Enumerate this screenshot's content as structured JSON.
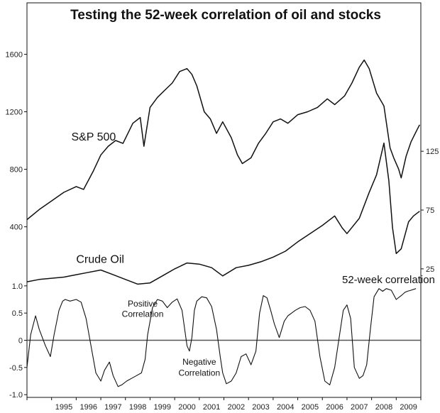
{
  "chart_data": {
    "type": "line",
    "title": "Testing the 52-week correlation of oil and stocks",
    "x_tick_labels": [
      "1995",
      "1996",
      "1997",
      "1998",
      "1999",
      "2000",
      "2001",
      "2002",
      "2003",
      "2004",
      "2005",
      "2006",
      "2007",
      "2008",
      "2009"
    ],
    "x_range": [
      1994.0,
      2010.0
    ],
    "grid": false,
    "legend": "none",
    "panels": [
      {
        "name": "S&P 500",
        "axis_side": "left",
        "y_ticks": [
          400,
          800,
          1200,
          1600
        ],
        "y_tick_labels": [
          "400",
          "800",
          "1200",
          "1600"
        ],
        "ylim": [
          250,
          1780
        ],
        "x": [
          1994.0,
          1994.5,
          1995.0,
          1995.5,
          1996.0,
          1996.3,
          1996.7,
          1997.0,
          1997.3,
          1997.6,
          1997.9,
          1998.3,
          1998.6,
          1998.75,
          1999.0,
          1999.3,
          1999.6,
          1999.9,
          2000.2,
          2000.5,
          2000.7,
          2000.9,
          2001.2,
          2001.45,
          2001.7,
          2001.95,
          2002.3,
          2002.55,
          2002.75,
          2003.1,
          2003.4,
          2003.7,
          2004.0,
          2004.3,
          2004.6,
          2005.0,
          2005.4,
          2005.8,
          2006.2,
          2006.5,
          2006.9,
          2007.2,
          2007.5,
          2007.7,
          2007.9,
          2008.2,
          2008.5,
          2008.75,
          2008.9,
          2009.1,
          2009.2,
          2009.4,
          2009.6,
          2009.8,
          2009.95
        ],
        "y": [
          450,
          520,
          580,
          640,
          680,
          660,
          790,
          900,
          960,
          1000,
          980,
          1120,
          1160,
          960,
          1230,
          1300,
          1350,
          1400,
          1480,
          1500,
          1460,
          1380,
          1200,
          1150,
          1050,
          1130,
          1020,
          900,
          840,
          880,
          980,
          1050,
          1130,
          1150,
          1120,
          1180,
          1200,
          1230,
          1290,
          1250,
          1310,
          1400,
          1510,
          1560,
          1500,
          1330,
          1240,
          950,
          880,
          800,
          740,
          890,
          990,
          1060,
          1110
        ]
      },
      {
        "name": "Crude Oil",
        "axis_side": "right",
        "y_ticks": [
          25,
          75,
          125
        ],
        "y_tick_labels": [
          "25",
          "75",
          "125"
        ],
        "ylim": [
          5,
          142
        ],
        "x": [
          1994.0,
          1994.5,
          1995.0,
          1995.5,
          1996.0,
          1996.5,
          1997.0,
          1997.5,
          1998.0,
          1998.5,
          1999.0,
          1999.5,
          2000.0,
          2000.5,
          2001.0,
          2001.5,
          2001.95,
          2002.5,
          2003.0,
          2003.5,
          2004.0,
          2004.5,
          2005.0,
          2005.5,
          2006.0,
          2006.5,
          2006.8,
          2007.0,
          2007.5,
          2007.9,
          2008.2,
          2008.5,
          2008.7,
          2008.85,
          2009.0,
          2009.2,
          2009.5,
          2009.7,
          2009.95
        ],
        "y": [
          14,
          16,
          17,
          18,
          20,
          22,
          24,
          20,
          16,
          12,
          13,
          19,
          25,
          30,
          29,
          26,
          19,
          26,
          28,
          31,
          35,
          40,
          48,
          55,
          62,
          70,
          60,
          55,
          68,
          90,
          105,
          132,
          100,
          60,
          38,
          42,
          65,
          70,
          74
        ]
      },
      {
        "name": "52-week correlation",
        "axis_side": "left",
        "y_ticks": [
          -1.0,
          -0.5,
          0,
          0.5,
          1.0
        ],
        "y_tick_labels": [
          "-1.0",
          "-0.5",
          "0",
          "0.5",
          "1.0"
        ],
        "ylim": [
          -1.05,
          1.05
        ],
        "zero_line": true,
        "x": [
          1994.0,
          1994.15,
          1994.35,
          1994.5,
          1994.75,
          1994.95,
          1995.1,
          1995.3,
          1995.45,
          1995.55,
          1995.75,
          1996.0,
          1996.2,
          1996.4,
          1996.6,
          1996.8,
          1997.0,
          1997.15,
          1997.35,
          1997.5,
          1997.7,
          1997.85,
          1998.05,
          1998.25,
          1998.45,
          1998.65,
          1998.8,
          1998.9,
          1999.1,
          1999.3,
          1999.5,
          1999.7,
          1999.9,
          2000.1,
          2000.3,
          2000.5,
          2000.6,
          2000.7,
          2000.8,
          2000.9,
          2001.1,
          2001.3,
          2001.5,
          2001.7,
          2001.85,
          2001.95,
          2002.1,
          2002.3,
          2002.5,
          2002.7,
          2002.9,
          2003.1,
          2003.3,
          2003.45,
          2003.6,
          2003.75,
          2003.9,
          2004.05,
          2004.25,
          2004.45,
          2004.6,
          2004.75,
          2004.9,
          2005.1,
          2005.3,
          2005.5,
          2005.7,
          2005.9,
          2006.1,
          2006.3,
          2006.5,
          2006.7,
          2006.85,
          2007.0,
          2007.15,
          2007.3,
          2007.5,
          2007.65,
          2007.8,
          2007.95,
          2008.1,
          2008.3,
          2008.45,
          2008.6,
          2008.8,
          2009.0,
          2009.2,
          2009.35,
          2009.45,
          2009.6,
          2009.8
        ],
        "y": [
          -0.5,
          0.1,
          0.45,
          0.2,
          -0.1,
          -0.3,
          0.1,
          0.55,
          0.72,
          0.75,
          0.72,
          0.75,
          0.7,
          0.4,
          -0.1,
          -0.6,
          -0.75,
          -0.55,
          -0.4,
          -0.65,
          -0.85,
          -0.82,
          -0.75,
          -0.7,
          -0.65,
          -0.6,
          -0.35,
          0.1,
          0.6,
          0.75,
          0.72,
          0.6,
          0.7,
          0.76,
          0.55,
          -0.1,
          -0.2,
          0.05,
          0.55,
          0.72,
          0.8,
          0.78,
          0.62,
          0.2,
          -0.3,
          -0.6,
          -0.8,
          -0.75,
          -0.6,
          -0.3,
          -0.25,
          -0.45,
          -0.2,
          0.5,
          0.82,
          0.78,
          0.55,
          0.3,
          0.05,
          0.35,
          0.45,
          0.5,
          0.55,
          0.6,
          0.62,
          0.55,
          0.35,
          -0.3,
          -0.75,
          -0.82,
          -0.5,
          0.1,
          0.55,
          0.65,
          0.4,
          -0.5,
          -0.7,
          -0.65,
          -0.45,
          0.2,
          0.8,
          0.95,
          0.9,
          0.95,
          0.92,
          0.75,
          0.82,
          0.88,
          0.9,
          0.92,
          0.95
        ]
      }
    ],
    "annotations": [
      {
        "text": "S&P 500",
        "x": 1995.8,
        "y": 1000,
        "panel": 0
      },
      {
        "text": "Crude Oil",
        "x": 1996.0,
        "y": 30,
        "panel": 1
      },
      {
        "text": "52-week correlation",
        "x": 2006.8,
        "y": 1.05,
        "panel": 2
      },
      {
        "text": "Positive",
        "x": 1998.7,
        "y": 0.62,
        "panel": 2
      },
      {
        "text": "Correlation",
        "x": 1998.7,
        "y": 0.43,
        "panel": 2
      },
      {
        "text": "Negative",
        "x": 2001.0,
        "y": -0.45,
        "panel": 2
      },
      {
        "text": "Correlation",
        "x": 2001.0,
        "y": -0.65,
        "panel": 2
      }
    ]
  }
}
